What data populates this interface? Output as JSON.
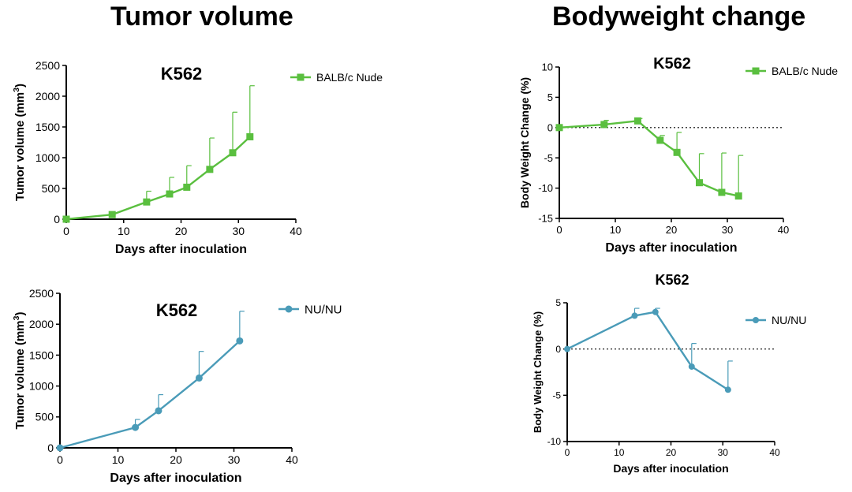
{
  "sections": {
    "tumor_title": "Tumor volume",
    "bodyweight_title": "Bodyweight change"
  },
  "chart_data": [
    {
      "id": "tumor-balbc",
      "type": "line",
      "title": "K562",
      "xlabel": "Days after inoculation",
      "ylabel": "Tumor volume (mm³)",
      "ylabel_parts": {
        "main": "Tumor volume (mm",
        "sup": "3",
        "end": ")"
      },
      "xlim": [
        0,
        40
      ],
      "ylim": [
        0,
        2500
      ],
      "xticks": [
        0,
        10,
        20,
        30,
        40
      ],
      "yticks": [
        0,
        500,
        1000,
        1500,
        2000,
        2500
      ],
      "zero_line": false,
      "legend_position": "top-right",
      "series": [
        {
          "name": "BALB/c Nude",
          "color": "#5abf3f",
          "marker": "square",
          "x": [
            0,
            8,
            14,
            18,
            21,
            25,
            29,
            32
          ],
          "y": [
            0,
            75,
            280,
            410,
            520,
            810,
            1080,
            1340
          ],
          "err": [
            0,
            30,
            175,
            270,
            350,
            510,
            660,
            830
          ]
        }
      ]
    },
    {
      "id": "weight-balbc",
      "type": "line",
      "title": "K562",
      "xlabel": "Days after inoculation",
      "ylabel": "Body Weight Change (%)",
      "xlim": [
        0,
        40
      ],
      "ylim": [
        -15,
        10
      ],
      "xticks": [
        0,
        10,
        20,
        30,
        40
      ],
      "yticks": [
        -15,
        -10,
        -5,
        0,
        5,
        10
      ],
      "zero_line": true,
      "legend_position": "top-right",
      "series": [
        {
          "name": "BALB/c Nude",
          "color": "#5abf3f",
          "marker": "square",
          "x": [
            0,
            8,
            14,
            18,
            21,
            25,
            29,
            32
          ],
          "y": [
            0,
            0.5,
            1.1,
            -2.1,
            -4.1,
            -9.1,
            -10.7,
            -11.3
          ],
          "err": [
            0,
            0.7,
            0.4,
            0.8,
            3.3,
            4.8,
            6.5,
            6.7
          ]
        }
      ]
    },
    {
      "id": "tumor-nunu",
      "type": "line",
      "title": "K562",
      "xlabel": "Days after inoculation",
      "ylabel": "Tumor volume (mm³)",
      "ylabel_parts": {
        "main": "Tumor volume (mm",
        "sup": "3",
        "end": ")"
      },
      "xlim": [
        0,
        40
      ],
      "ylim": [
        0,
        2500
      ],
      "xticks": [
        0,
        10,
        20,
        30,
        40
      ],
      "yticks": [
        0,
        500,
        1000,
        1500,
        2000,
        2500
      ],
      "zero_line": false,
      "legend_position": "top-right",
      "series": [
        {
          "name": "NU/NU",
          "color": "#4a9bb8",
          "marker": "circle",
          "x": [
            0,
            13,
            17,
            24,
            31
          ],
          "y": [
            0,
            330,
            600,
            1130,
            1730
          ],
          "err": [
            0,
            130,
            260,
            430,
            480
          ]
        }
      ]
    },
    {
      "id": "weight-nunu",
      "type": "line",
      "title": "K562",
      "xlabel": "Days after inoculation",
      "ylabel": "Body Weight Change (%)",
      "xlim": [
        0,
        40
      ],
      "ylim": [
        -10,
        5
      ],
      "xticks": [
        0,
        10,
        20,
        30,
        40
      ],
      "yticks": [
        -10,
        -5,
        0,
        5
      ],
      "zero_line": true,
      "legend_position": "top-right",
      "series": [
        {
          "name": "NU/NU",
          "color": "#4a9bb8",
          "marker": "circle",
          "x": [
            0,
            13,
            17,
            24,
            31
          ],
          "y": [
            0,
            3.6,
            4.0,
            -1.9,
            -4.4
          ],
          "err": [
            0,
            0.8,
            0.4,
            2.5,
            3.1
          ]
        }
      ]
    }
  ]
}
